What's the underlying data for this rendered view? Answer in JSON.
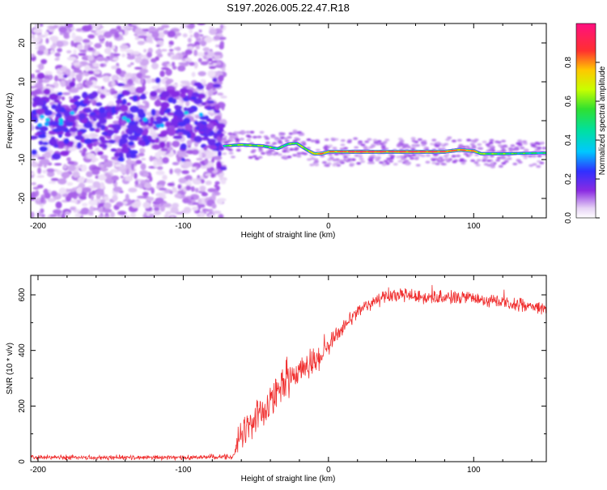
{
  "title": "S197.2026.005.22.47.R18",
  "colors": {
    "snr_line": "#f03030",
    "spectrogram_scatter": "#8a2be2",
    "spectrogram_trace_core": "#e8204a",
    "axis": "#000000"
  },
  "chart_data": [
    {
      "type": "heatmap",
      "name": "spectrogram",
      "title": "S197.2026.005.22.47.R18",
      "xlabel": "Height of straight line (km)",
      "ylabel": "Frequency (Hz)",
      "xlim": [
        -205,
        150
      ],
      "ylim": [
        -25,
        25
      ],
      "xticks": [
        -200,
        -100,
        0,
        100
      ],
      "yticks": [
        -20,
        -10,
        0,
        10,
        20
      ],
      "colorbar": {
        "label": "Normalized spectral amplitude",
        "range": [
          0.0,
          1.0
        ],
        "ticks": [
          0.0,
          0.2,
          0.4,
          0.6,
          0.8
        ],
        "tick_labels": [
          "0.0",
          "0.2",
          "0.4",
          "0.6",
          "0.8"
        ],
        "colormap": "rainbow (white-violet-blue-cyan-green-yellow-red-magenta)"
      },
      "trace": {
        "x": [
          -205,
          -180,
          -150,
          -120,
          -100,
          -80,
          -72,
          -60,
          -45,
          -35,
          -28,
          -22,
          -15,
          -10,
          -5,
          0,
          20,
          40,
          60,
          80,
          90,
          100,
          105,
          120,
          150
        ],
        "freq": [
          0.0,
          0.5,
          0.3,
          0.0,
          1.0,
          1.5,
          -6.5,
          -6.2,
          -6.5,
          -7.2,
          -6.0,
          -5.8,
          -7.5,
          -8.5,
          -8.5,
          -8.0,
          -8.0,
          -8.0,
          -8.0,
          -8.0,
          -7.5,
          -7.8,
          -8.5,
          -8.5,
          -8.3
        ],
        "amplitude": [
          0.25,
          0.2,
          0.2,
          0.25,
          0.2,
          0.2,
          0.55,
          0.6,
          0.6,
          0.5,
          0.55,
          0.6,
          0.65,
          0.75,
          0.85,
          0.8,
          0.95,
          0.9,
          0.92,
          0.9,
          0.85,
          0.85,
          0.6,
          0.55,
          0.45
        ]
      },
      "scatter_region": {
        "x_range": [
          -205,
          -72
        ],
        "freq_range": [
          -25,
          25
        ],
        "amplitude_range": [
          0.0,
          0.2
        ]
      }
    },
    {
      "type": "line",
      "name": "snr",
      "xlabel": "Height of straight line (km)",
      "ylabel": "SNR (10 * v/v)",
      "xlim": [
        -205,
        150
      ],
      "ylim": [
        0,
        670
      ],
      "xticks": [
        -200,
        -100,
        0,
        100
      ],
      "yticks": [
        0,
        200,
        400,
        600
      ],
      "envelope": {
        "x": [
          -205,
          -150,
          -100,
          -65,
          -62,
          -55,
          -45,
          -35,
          -25,
          -15,
          -5,
          0,
          10,
          20,
          30,
          40,
          50,
          60,
          80,
          100,
          120,
          140,
          150
        ],
        "mean": [
          15,
          15,
          15,
          18,
          90,
          130,
          180,
          250,
          300,
          340,
          380,
          420,
          480,
          540,
          575,
          595,
          600,
          595,
          590,
          585,
          575,
          560,
          550
        ],
        "noise": [
          10,
          10,
          10,
          12,
          60,
          70,
          80,
          80,
          70,
          60,
          50,
          40,
          35,
          30,
          30,
          30,
          30,
          30,
          30,
          30,
          30,
          30,
          30
        ]
      }
    }
  ]
}
